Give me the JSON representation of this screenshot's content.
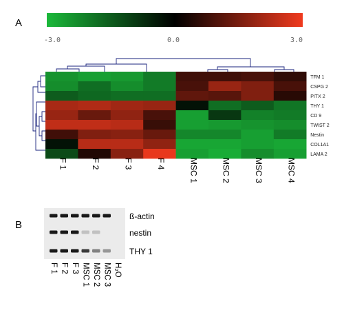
{
  "panels": {
    "a_label": "A",
    "b_label": "B"
  },
  "color_scale": {
    "min_label": "-3.0",
    "mid_label": "0.0",
    "max_label": "3.0",
    "low_color": "#1bb83a",
    "mid_color": "#000000",
    "high_color": "#f03a1e"
  },
  "chart_data": [
    {
      "type": "heatmap",
      "columns": [
        "F 1",
        "F 2",
        "F 3",
        "F 4",
        "MSC 1",
        "MSC 2",
        "MSC 3",
        "MSC 4"
      ],
      "rows": [
        "TFM 1",
        "CSPG 2",
        "PITX 2",
        "THY 1",
        "CD 9",
        "TWIST 2",
        "Nestin",
        "COL1A1",
        "LAMA 2"
      ],
      "values": [
        [
          -2.4,
          -2.6,
          -2.5,
          -2.0,
          0.8,
          0.8,
          0.9,
          0.6
        ],
        [
          -2.3,
          -1.8,
          -2.3,
          -2.0,
          0.9,
          1.9,
          1.6,
          0.9
        ],
        [
          -1.5,
          -1.7,
          -1.8,
          -1.8,
          1.2,
          1.1,
          1.6,
          0.5
        ],
        [
          2.1,
          2.2,
          2.0,
          1.9,
          -0.3,
          -1.8,
          -1.5,
          -1.9
        ],
        [
          1.9,
          1.3,
          1.8,
          0.9,
          -2.6,
          -0.9,
          -2.1,
          -2.0
        ],
        [
          2.4,
          2.4,
          2.3,
          0.7,
          -2.6,
          -2.5,
          -2.4,
          -2.3
        ],
        [
          0.8,
          1.6,
          1.7,
          1.3,
          -2.2,
          -2.2,
          -2.6,
          -2.0
        ],
        [
          -0.3,
          2.3,
          2.3,
          1.8,
          -2.7,
          -2.7,
          -2.6,
          -2.7
        ],
        [
          -1.2,
          0.4,
          1.7,
          2.9,
          -2.6,
          -2.8,
          -2.3,
          -2.6
        ]
      ],
      "scale_range": [
        -3.0,
        3.0
      ],
      "dendrogram": "column and row clustering trees, dark blue"
    },
    {
      "type": "gel",
      "lanes": [
        "F 1",
        "F 2",
        "F 3",
        "MSC 1",
        "MSC 2",
        "MSC 3",
        "H₂O"
      ],
      "bands": [
        {
          "name": "ß-actin",
          "intensities": [
            1.0,
            1.0,
            1.0,
            1.0,
            1.0,
            1.0,
            0.0
          ]
        },
        {
          "name": "nestin",
          "intensities": [
            1.0,
            1.0,
            1.0,
            0.2,
            0.2,
            0.0,
            0.0
          ]
        },
        {
          "name": "THY 1",
          "intensities": [
            1.0,
            1.0,
            1.0,
            0.85,
            0.5,
            0.4,
            0.0
          ]
        }
      ]
    }
  ]
}
